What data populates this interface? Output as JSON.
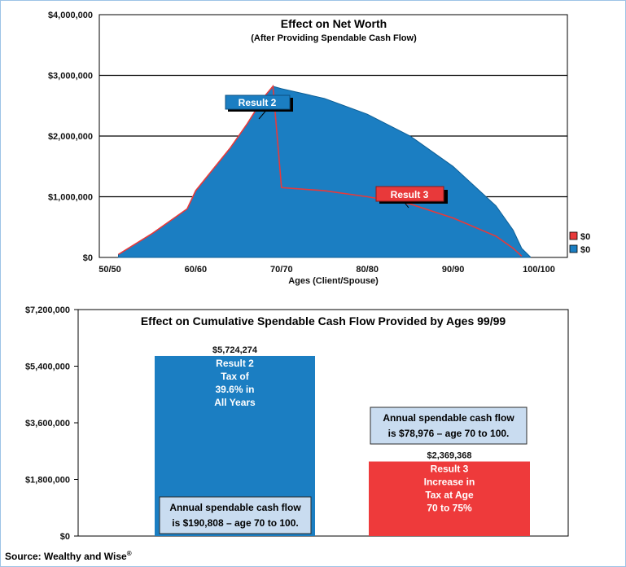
{
  "chart_data": [
    {
      "type": "area",
      "title": "Effect on Net Worth",
      "subtitle": "(After Providing Spendable Cash Flow)",
      "xlabel": "Ages (Client/Spouse)",
      "ylabel": "",
      "x_ticks": [
        "50/50",
        "60/60",
        "70/70",
        "80/80",
        "90/90",
        "100/100"
      ],
      "y_ticks": [
        "$4,000,000",
        "$3,000,000",
        "$2,000,000",
        "$1,000,000",
        "$0"
      ],
      "ylim": [
        0,
        4000000
      ],
      "xlim": [
        50,
        100
      ],
      "grid": true,
      "series": [
        {
          "name": "Result 2",
          "color": "#1b7ec2",
          "points": [
            [
              51,
              50000
            ],
            [
              55,
              400000
            ],
            [
              59,
              800000
            ],
            [
              60,
              1100000
            ],
            [
              62,
              1450000
            ],
            [
              64,
              1800000
            ],
            [
              66,
              2200000
            ],
            [
              68,
              2650000
            ],
            [
              69,
              2820000
            ],
            [
              70,
              2780000
            ],
            [
              75,
              2620000
            ],
            [
              80,
              2360000
            ],
            [
              85,
              2000000
            ],
            [
              90,
              1500000
            ],
            [
              95,
              850000
            ],
            [
              97,
              450000
            ],
            [
              98,
              150000
            ],
            [
              99,
              10000
            ]
          ]
        },
        {
          "name": "Result 3",
          "color": "#e8393a",
          "points": [
            [
              51,
              50000
            ],
            [
              55,
              400000
            ],
            [
              59,
              800000
            ],
            [
              60,
              1100000
            ],
            [
              62,
              1450000
            ],
            [
              64,
              1800000
            ],
            [
              66,
              2200000
            ],
            [
              68,
              2650000
            ],
            [
              69,
              2820000
            ],
            [
              70,
              1150000
            ],
            [
              75,
              1100000
            ],
            [
              80,
              1000000
            ],
            [
              85,
              880000
            ],
            [
              90,
              650000
            ],
            [
              95,
              350000
            ],
            [
              97,
              150000
            ],
            [
              98,
              20000
            ]
          ]
        }
      ],
      "annotations": [
        "Result 2",
        "Result 3"
      ],
      "legend": {
        "placement": "right",
        "entries": [
          {
            "label": "$0",
            "color": "#e8393a"
          },
          {
            "label": "$0",
            "color": "#1b7ec2"
          }
        ]
      }
    },
    {
      "type": "bar",
      "title": "Effect on Cumulative Spendable Cash Flow Provided by Ages 99/99",
      "xlabel": "",
      "ylabel": "",
      "y_ticks": [
        "$7,200,000",
        "$5,400,000",
        "$3,600,000",
        "$1,800,000",
        "$0"
      ],
      "ylim": [
        0,
        7200000
      ],
      "bars": [
        {
          "name": "Result 2",
          "value": 5724274,
          "value_label": "$5,724,274",
          "color": "#1b7ec2",
          "inner_lines": [
            "Result 2",
            "Tax of",
            "39.6% in",
            "All Years"
          ],
          "note_lines": [
            "Annual spendable cash flow",
            "is $190,808 – age 70 to 100."
          ]
        },
        {
          "name": "Result 3",
          "value": 2369368,
          "value_label": "$2,369,368",
          "color": "#ee3a3b",
          "inner_lines": [
            "Result 3",
            "Increase in",
            "Tax at Age",
            "70 to 75%"
          ],
          "note_lines": [
            "Annual spendable cash flow",
            "is $78,976 – age 70 to 100."
          ]
        }
      ]
    }
  ],
  "source": {
    "text": "Source: Wealthy and Wise",
    "mark": "®"
  }
}
